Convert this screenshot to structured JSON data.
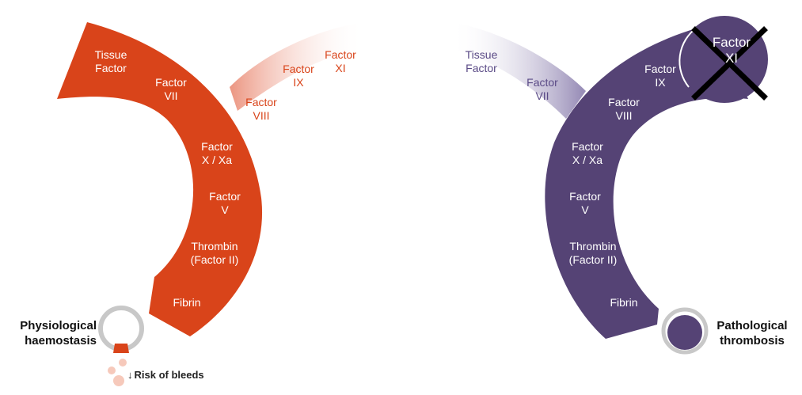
{
  "left": {
    "labels": {
      "tissue_factor": "Tissue\nFactor",
      "factor_vii": "Factor\nVII",
      "factor_x": "Factor\nX / Xa",
      "factor_v": "Factor\nV",
      "thrombin": "Thrombin\n(Factor II)",
      "fibrin": "Fibrin",
      "factor_viii": "Factor\nVIII",
      "factor_ix": "Factor\nIX",
      "factor_xi": "Factor\nXI"
    },
    "side_label": "Physiological\nhaemostasis",
    "risk_text": "Risk of bleeds"
  },
  "right": {
    "labels": {
      "tissue_factor": "Tissue\nFactor",
      "factor_vii": "Factor\nVII",
      "factor_ix": "Factor\nIX",
      "factor_viii": "Factor\nVIII",
      "factor_x": "Factor\nX / Xa",
      "factor_v": "Factor\nV",
      "thrombin": "Thrombin\n(Factor II)",
      "fibrin": "Fibrin",
      "factor_xi": "Factor\nXI"
    },
    "side_label": "Pathological\nthrombosis"
  },
  "colors": {
    "orange": "#d9441a",
    "purple": "#554375",
    "ring_grey": "#c8c8c8",
    "blood_light": "#f6c9bb"
  }
}
